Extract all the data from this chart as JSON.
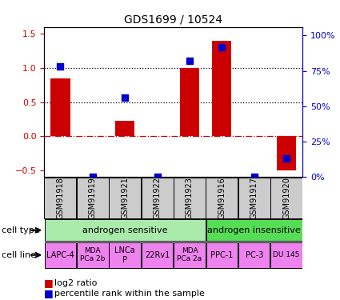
{
  "title": "GDS1699 / 10524",
  "samples": [
    "GSM91918",
    "GSM91919",
    "GSM91921",
    "GSM91922",
    "GSM91923",
    "GSM91916",
    "GSM91917",
    "GSM91920"
  ],
  "log2_ratio": [
    0.85,
    0.0,
    0.22,
    0.0,
    1.0,
    1.4,
    0.0,
    -0.5
  ],
  "percentile_rank": [
    78,
    0,
    56,
    0,
    82,
    92,
    0,
    13
  ],
  "cell_types": [
    {
      "label": "androgen sensitive",
      "start": 0,
      "end": 5,
      "color": "#aaeaaa"
    },
    {
      "label": "androgen insensitive",
      "start": 5,
      "end": 8,
      "color": "#55dd55"
    }
  ],
  "cell_lines": [
    {
      "label": "LAPC-4",
      "start": 0,
      "end": 1,
      "color": "#ee82ee",
      "fontsize": 7
    },
    {
      "label": "MDA\nPCa 2b",
      "start": 1,
      "end": 2,
      "color": "#ee82ee",
      "fontsize": 6.5
    },
    {
      "label": "LNCa\nP",
      "start": 2,
      "end": 3,
      "color": "#ee82ee",
      "fontsize": 7
    },
    {
      "label": "22Rv1",
      "start": 3,
      "end": 4,
      "color": "#ee82ee",
      "fontsize": 7
    },
    {
      "label": "MDA\nPCa 2a",
      "start": 4,
      "end": 5,
      "color": "#ee82ee",
      "fontsize": 6.5
    },
    {
      "label": "PPC-1",
      "start": 5,
      "end": 6,
      "color": "#ee82ee",
      "fontsize": 7
    },
    {
      "label": "PC-3",
      "start": 6,
      "end": 7,
      "color": "#ee82ee",
      "fontsize": 7
    },
    {
      "label": "DU 145",
      "start": 7,
      "end": 8,
      "color": "#ee82ee",
      "fontsize": 6.5
    }
  ],
  "bar_color": "#cc0000",
  "dot_color": "#0000cc",
  "ylim_left": [
    -0.6,
    1.6
  ],
  "ylim_right": [
    0,
    106
  ],
  "yticks_left": [
    -0.5,
    0.0,
    0.5,
    1.0,
    1.5
  ],
  "yticks_right": [
    0,
    25,
    50,
    75,
    100
  ],
  "ytick_labels_right": [
    "0%",
    "25%",
    "50%",
    "75%",
    "100%"
  ],
  "hline_values": [
    0.0,
    0.5,
    1.0
  ],
  "hline_styles": [
    "dashdot",
    "dotted",
    "dotted"
  ],
  "hline_colors": [
    "#cc0000",
    "black",
    "black"
  ],
  "bar_width": 0.6,
  "dot_size": 35,
  "sample_label_fontsize": 7,
  "cell_type_label": "cell type",
  "cell_line_label": "cell line",
  "legend_bar_label": "log2 ratio",
  "legend_dot_label": "percentile rank within the sample",
  "gray_bg": "#cccccc"
}
